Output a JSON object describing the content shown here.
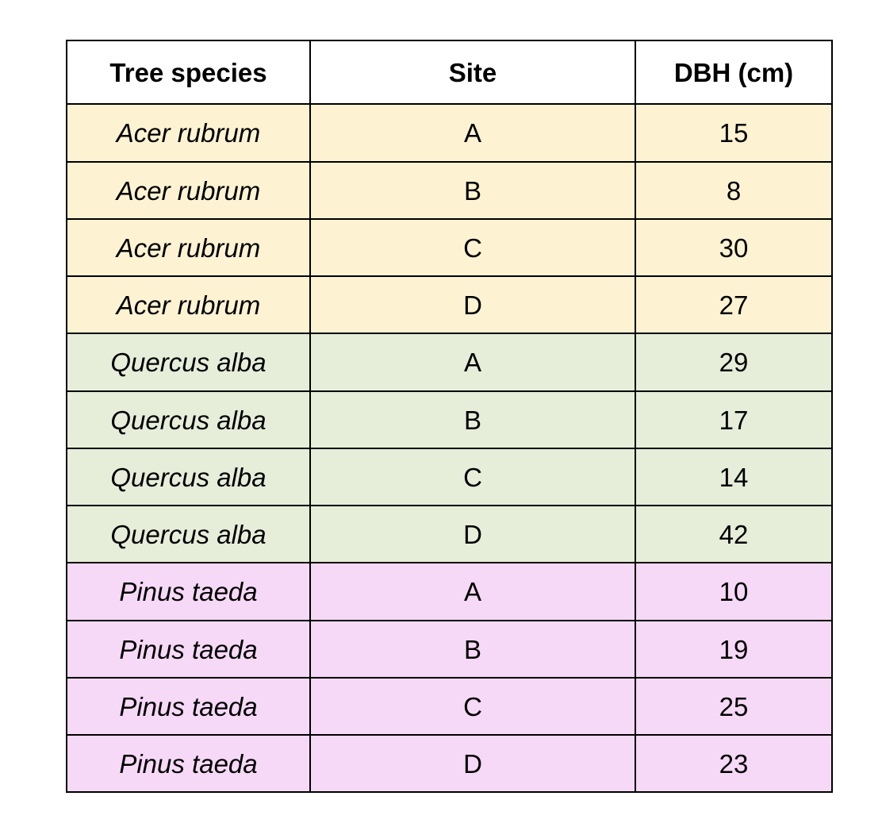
{
  "table": {
    "headers": [
      "Tree species",
      "Site",
      "DBH (cm)"
    ],
    "group_colors": {
      "Acer rubrum": "#fdf3d2",
      "Quercus alba": "#e6eed9",
      "Pinus taeda": "#f6d9f6"
    },
    "rows": [
      {
        "species": "Acer rubrum",
        "site": "A",
        "dbh": "15"
      },
      {
        "species": "Acer rubrum",
        "site": "B",
        "dbh": "8"
      },
      {
        "species": "Acer rubrum",
        "site": "C",
        "dbh": "30"
      },
      {
        "species": "Acer rubrum",
        "site": "D",
        "dbh": "27"
      },
      {
        "species": "Quercus alba",
        "site": "A",
        "dbh": "29"
      },
      {
        "species": "Quercus alba",
        "site": "B",
        "dbh": "17"
      },
      {
        "species": "Quercus alba",
        "site": "C",
        "dbh": "14"
      },
      {
        "species": "Quercus alba",
        "site": "D",
        "dbh": "42"
      },
      {
        "species": "Pinus taeda",
        "site": "A",
        "dbh": "10"
      },
      {
        "species": "Pinus taeda",
        "site": "B",
        "dbh": "19"
      },
      {
        "species": "Pinus taeda",
        "site": "C",
        "dbh": "25"
      },
      {
        "species": "Pinus taeda",
        "site": "D",
        "dbh": "23"
      }
    ]
  }
}
